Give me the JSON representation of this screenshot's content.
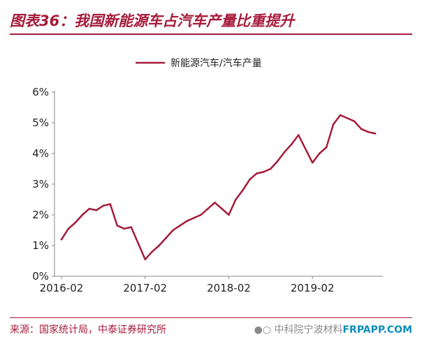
{
  "header": {
    "title": "图表36：我国新能源车占汽车产量比重提升"
  },
  "footer": {
    "source": "来源：国家统计局，中泰证券研究所",
    "watermark_prefix": "中科院宁波材料",
    "watermark_site": "FRPAPP.COM"
  },
  "chart_data": {
    "type": "line",
    "title": "",
    "xlabel": "",
    "ylabel": "",
    "series": [
      {
        "name": "新能源汽车/汽车产量",
        "color": "#a61b3a",
        "x": [
          "2016-02",
          "2016-03",
          "2016-04",
          "2016-05",
          "2016-06",
          "2016-07",
          "2016-08",
          "2016-09",
          "2016-10",
          "2016-11",
          "2016-12",
          "2017-02",
          "2017-03",
          "2017-04",
          "2017-05",
          "2017-06",
          "2017-07",
          "2017-08",
          "2017-09",
          "2017-10",
          "2017-11",
          "2017-12",
          "2018-02",
          "2018-03",
          "2018-04",
          "2018-05",
          "2018-06",
          "2018-07",
          "2018-08",
          "2018-09",
          "2018-10",
          "2018-11",
          "2018-12",
          "2019-02",
          "2019-03",
          "2019-04",
          "2019-05",
          "2019-06",
          "2019-07",
          "2019-08",
          "2019-09",
          "2019-10",
          "2019-11"
        ],
        "values": [
          1.2,
          1.55,
          1.75,
          2.0,
          2.2,
          2.15,
          2.3,
          2.35,
          1.65,
          1.55,
          1.6,
          0.55,
          0.8,
          1.0,
          1.25,
          1.5,
          1.65,
          1.8,
          1.9,
          2.0,
          2.2,
          2.4,
          2.0,
          2.5,
          2.8,
          3.15,
          3.35,
          3.4,
          3.5,
          3.75,
          4.05,
          4.3,
          4.6,
          3.7,
          4.0,
          4.2,
          4.95,
          5.25,
          5.15,
          5.05,
          4.8,
          4.7,
          4.65
        ]
      }
    ],
    "x_ticks": [
      "2016-02",
      "2017-02",
      "2018-02",
      "2019-02"
    ],
    "y_ticks": [
      "0%",
      "1%",
      "2%",
      "3%",
      "4%",
      "5%",
      "6%"
    ],
    "ylim": [
      0,
      6
    ],
    "grid": false,
    "legend_position": "top-center"
  }
}
